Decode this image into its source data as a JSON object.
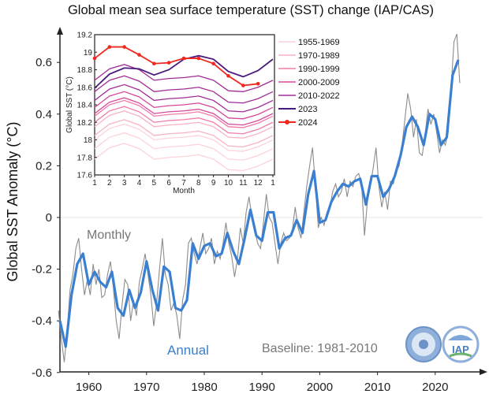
{
  "chart_data": {
    "type": "line",
    "title": "Global mean sea surface temperature (SST) change (IAP/CAS)",
    "ylabel": "Global SST Anomaly (°C)",
    "xlabel": "",
    "xlim": [
      1955,
      2027
    ],
    "ylim": [
      -0.6,
      0.7
    ],
    "xticks": [
      "1960",
      "1970",
      "1980",
      "1990",
      "2000",
      "2010",
      "2020"
    ],
    "xtick_values": [
      1960,
      1970,
      1980,
      1990,
      2000,
      2010,
      2020
    ],
    "yticks": [
      "-0.6",
      "-0.4",
      "-0.2",
      "0",
      "0.2",
      "0.4",
      "0.6"
    ],
    "ytick_values": [
      -0.6,
      -0.4,
      -0.2,
      0,
      0.2,
      0.4,
      0.6
    ],
    "annotations": {
      "monthly": "Monthly",
      "annual": "Annual",
      "baseline": "Baseline: 1981-2010"
    },
    "colors": {
      "annual": "#3a7fd0",
      "monthly": "#8c8c8c",
      "zero_line": "#e6e6e6"
    },
    "annual": {
      "name": "Annual",
      "start_year": 1955,
      "values": [
        -0.4,
        -0.5,
        -0.3,
        -0.18,
        -0.14,
        -0.26,
        -0.21,
        -0.25,
        -0.27,
        -0.21,
        -0.35,
        -0.38,
        -0.28,
        -0.35,
        -0.29,
        -0.17,
        -0.28,
        -0.36,
        -0.19,
        -0.21,
        -0.35,
        -0.36,
        -0.32,
        -0.1,
        -0.16,
        -0.11,
        -0.1,
        -0.15,
        -0.14,
        -0.06,
        -0.13,
        -0.18,
        -0.08,
        0.03,
        -0.07,
        -0.09,
        0.02,
        0.02,
        -0.12,
        -0.08,
        -0.07,
        -0.01,
        -0.06,
        0.09,
        0.18,
        -0.02,
        -0.01,
        0.06,
        0.1,
        0.13,
        0.12,
        0.14,
        0.15,
        0.05,
        0.16,
        0.16,
        0.08,
        0.11,
        0.16,
        0.24,
        0.35,
        0.39,
        0.35,
        0.28,
        0.4,
        0.38,
        0.28,
        0.31,
        0.55,
        0.61
      ]
    },
    "monthly": {
      "name": "Monthly",
      "start_year": 1955,
      "step_years": 0.5,
      "values": [
        -0.36,
        -0.47,
        -0.56,
        -0.44,
        -0.28,
        -0.22,
        -0.12,
        -0.08,
        -0.2,
        -0.3,
        -0.24,
        -0.3,
        -0.18,
        -0.26,
        -0.2,
        -0.31,
        -0.3,
        -0.22,
        -0.17,
        -0.27,
        -0.4,
        -0.47,
        -0.34,
        -0.24,
        -0.26,
        -0.4,
        -0.32,
        -0.38,
        -0.25,
        -0.2,
        -0.14,
        -0.22,
        -0.3,
        -0.42,
        -0.33,
        -0.2,
        -0.08,
        -0.22,
        -0.26,
        -0.36,
        -0.33,
        -0.38,
        -0.47,
        -0.32,
        -0.26,
        -0.1,
        -0.08,
        -0.14,
        -0.18,
        -0.12,
        -0.06,
        -0.14,
        -0.12,
        -0.08,
        -0.18,
        -0.13,
        -0.16,
        -0.1,
        -0.02,
        -0.1,
        -0.15,
        -0.23,
        -0.16,
        -0.04,
        -0.1,
        0.02,
        0.08,
        0.0,
        -0.05,
        -0.1,
        -0.12,
        -0.02,
        0.09,
        0.0,
        -0.02,
        -0.1,
        -0.18,
        -0.1,
        -0.06,
        -0.09,
        -0.08,
        -0.05,
        0.04,
        -0.04,
        -0.08,
        0.02,
        0.12,
        0.2,
        0.27,
        0.12,
        -0.04,
        0.0,
        -0.03,
        0.02,
        0.04,
        0.1,
        0.13,
        0.08,
        0.1,
        0.15,
        0.08,
        0.14,
        0.12,
        0.16,
        0.17,
        0.13,
        -0.07,
        0.06,
        0.12,
        0.19,
        0.27,
        0.12,
        0.04,
        0.1,
        0.03,
        0.14,
        0.13,
        0.18,
        0.2,
        0.28,
        0.38,
        0.48,
        0.42,
        0.31,
        0.38,
        0.25,
        0.24,
        0.32,
        0.42,
        0.36,
        0.4,
        0.33,
        0.25,
        0.3,
        0.28,
        0.33,
        0.5,
        0.68,
        0.71,
        0.52
      ]
    },
    "inset": {
      "type": "line",
      "ylabel": "Global SST (°C)",
      "xlabel": "Month",
      "ylim": [
        17.6,
        19.2
      ],
      "xticks": [
        "1",
        "2",
        "3",
        "4",
        "5",
        "6",
        "7",
        "8",
        "9",
        "10",
        "11",
        "12",
        "1"
      ],
      "yticks": [
        "17.6",
        "17.8",
        "18",
        "18.2",
        "18.4",
        "18.6",
        "18.8",
        "19",
        "19.2"
      ],
      "ytick_values": [
        17.6,
        17.8,
        18.0,
        18.2,
        18.4,
        18.6,
        18.8,
        19.0,
        19.2
      ],
      "legend_placement": "right",
      "groups": [
        {
          "name": "1955-1969",
          "color": "#fcd3d9",
          "lines": [
            [
              17.78,
              17.91,
              17.96,
              17.9,
              17.78,
              17.8,
              17.81,
              17.83,
              17.78,
              17.66,
              17.65,
              17.7,
              17.78
            ],
            [
              17.9,
              18.03,
              18.08,
              18.02,
              17.9,
              17.92,
              17.93,
              17.95,
              17.9,
              17.78,
              17.77,
              17.82,
              17.9
            ],
            [
              18.0,
              18.13,
              18.18,
              18.12,
              18.0,
              18.02,
              18.03,
              18.05,
              18.0,
              17.88,
              17.87,
              17.92,
              18.0
            ]
          ]
        },
        {
          "name": "1970-1989",
          "color": "#f8b2c3",
          "lines": [
            [
              18.05,
              18.18,
              18.23,
              18.17,
              18.05,
              18.07,
              18.08,
              18.1,
              18.05,
              17.93,
              17.92,
              17.97,
              18.05
            ],
            [
              18.15,
              18.28,
              18.33,
              18.27,
              18.15,
              18.17,
              18.18,
              18.2,
              18.15,
              18.03,
              18.02,
              18.07,
              18.15
            ]
          ]
        },
        {
          "name": "1990-1999",
          "color": "#f17aa8",
          "lines": [
            [
              18.2,
              18.33,
              18.38,
              18.32,
              18.2,
              18.22,
              18.23,
              18.25,
              18.2,
              18.08,
              18.07,
              18.12,
              18.2
            ],
            [
              18.27,
              18.4,
              18.45,
              18.39,
              18.27,
              18.29,
              18.3,
              18.32,
              18.27,
              18.15,
              18.14,
              18.19,
              18.27
            ]
          ]
        },
        {
          "name": "2000-2009",
          "color": "#d6489a",
          "lines": [
            [
              18.3,
              18.43,
              18.48,
              18.42,
              18.3,
              18.32,
              18.33,
              18.35,
              18.3,
              18.18,
              18.17,
              18.22,
              18.3
            ],
            [
              18.37,
              18.5,
              18.55,
              18.49,
              18.37,
              18.39,
              18.4,
              18.42,
              18.37,
              18.25,
              18.24,
              18.29,
              18.37
            ]
          ]
        },
        {
          "name": "2010-2022",
          "color": "#a22c97",
          "lines": [
            [
              18.45,
              18.58,
              18.63,
              18.57,
              18.45,
              18.47,
              18.48,
              18.5,
              18.45,
              18.33,
              18.32,
              18.37,
              18.45
            ],
            [
              18.55,
              18.68,
              18.73,
              18.67,
              18.55,
              18.57,
              18.58,
              18.6,
              18.55,
              18.43,
              18.42,
              18.47,
              18.55
            ],
            [
              18.68,
              18.81,
              18.86,
              18.8,
              18.68,
              18.7,
              18.71,
              18.73,
              18.68,
              18.56,
              18.55,
              18.6,
              18.68
            ]
          ]
        },
        {
          "name": "2023",
          "color": "#4a1a7e",
          "lines": [
            [
              18.59,
              18.75,
              18.82,
              18.81,
              18.74,
              18.8,
              18.92,
              18.96,
              18.92,
              18.78,
              18.72,
              18.79,
              18.92
            ]
          ]
        },
        {
          "name": "2024",
          "color": "#f0281e",
          "markers": true,
          "lines": [
            [
              18.93,
              19.06,
              19.06,
              18.97,
              18.87,
              18.88,
              18.93,
              18.93,
              18.87,
              18.73,
              18.62,
              18.64
            ]
          ]
        }
      ]
    }
  },
  "logos": [
    "Chinese Academy of Sciences seal",
    "IAP seal"
  ]
}
